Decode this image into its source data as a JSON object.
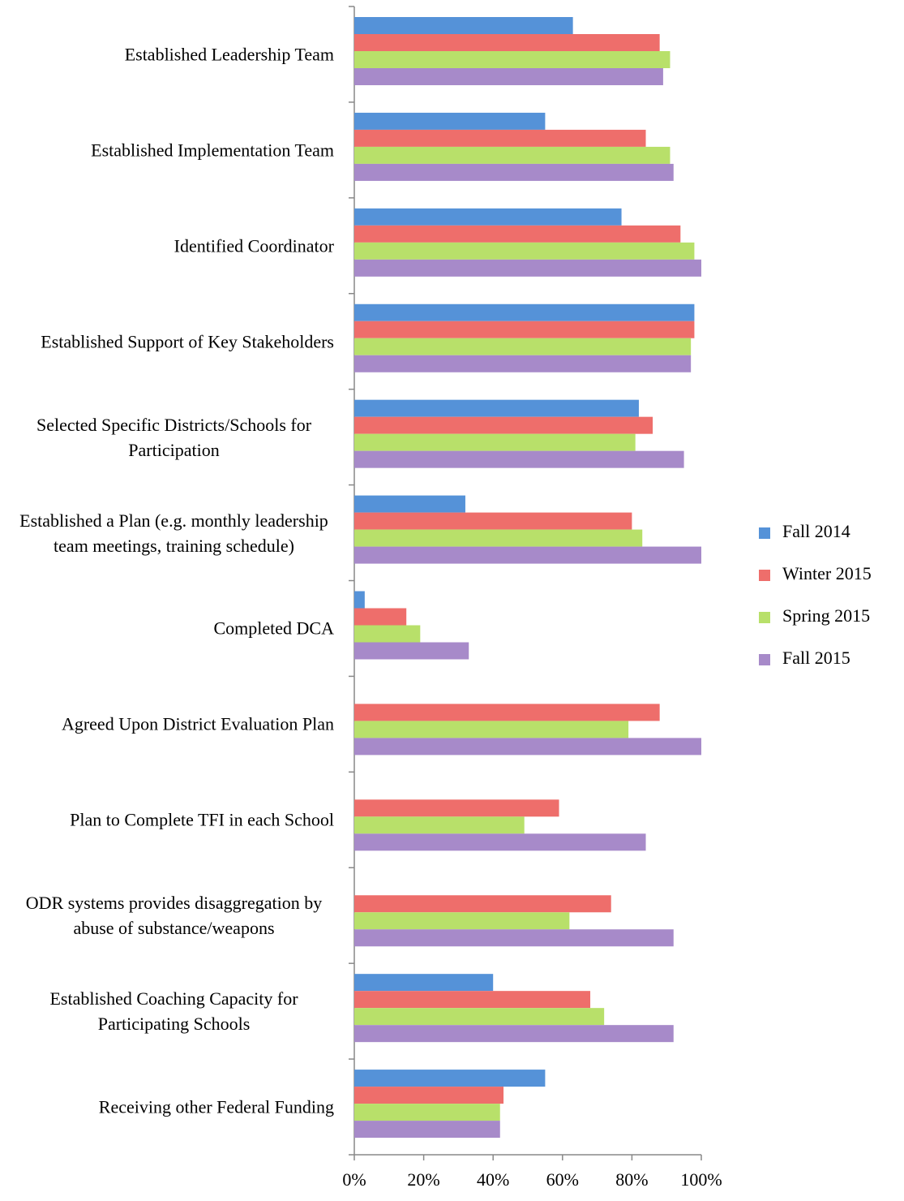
{
  "chart_data": {
    "type": "hbar",
    "categories": [
      "Established Leadership Team",
      "Established Implementation Team",
      "Identified Coordinator",
      "Established Support of Key Stakeholders",
      "Selected Specific Districts/Schools for Participation",
      "Established a Plan (e.g. monthly leadership team meetings, training schedule)",
      "Completed DCA",
      "Agreed Upon District Evaluation Plan",
      "Plan to Complete TFI in each School",
      "ODR systems provides disaggregation by abuse of substance/weapons",
      "Established Coaching Capacity for Participating Schools",
      "Receiving other Federal Funding"
    ],
    "series": [
      {
        "name": "Fall 2014",
        "color": "#5592d8",
        "values": [
          63,
          55,
          77,
          98,
          82,
          32,
          3,
          null,
          null,
          null,
          40,
          55
        ]
      },
      {
        "name": "Winter 2015",
        "color": "#ee6e6b",
        "values": [
          88,
          84,
          94,
          98,
          86,
          80,
          15,
          88,
          59,
          74,
          68,
          43
        ]
      },
      {
        "name": "Spring 2015",
        "color": "#b8e06a",
        "values": [
          91,
          91,
          98,
          97,
          81,
          83,
          19,
          79,
          49,
          62,
          72,
          42
        ]
      },
      {
        "name": "Fall 2015",
        "color": "#a78ac9",
        "values": [
          89,
          92,
          100,
          97,
          95,
          100,
          33,
          100,
          84,
          92,
          92,
          42
        ]
      }
    ],
    "xlim": [
      0,
      100
    ],
    "xticks": [
      {
        "value": 0,
        "label": "0%"
      },
      {
        "value": 20,
        "label": "20%"
      },
      {
        "value": 40,
        "label": "40%"
      },
      {
        "value": 60,
        "label": "60%"
      },
      {
        "value": 80,
        "label": "80%"
      },
      {
        "value": 100,
        "label": "100%"
      }
    ],
    "legend": "right"
  }
}
